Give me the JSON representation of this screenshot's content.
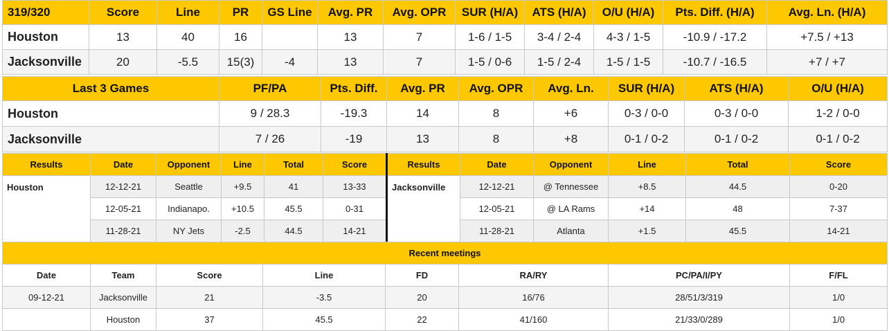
{
  "matchup": {
    "headers": [
      "319/320",
      "Score",
      "Line",
      "PR",
      "GS Line",
      "Avg. PR",
      "Avg. OPR",
      "SUR (H/A)",
      "ATS (H/A)",
      "O/U (H/A)",
      "Pts. Diff. (H/A)",
      "Avg. Ln. (H/A)"
    ],
    "rows": [
      {
        "team": "Houston",
        "cells": [
          "13",
          "40",
          "16",
          "",
          "13",
          "7",
          "1-6 / 1-5",
          "3-4 / 2-4",
          "4-3 / 1-5",
          "-10.9 / -17.2",
          "+7.5 / +13"
        ]
      },
      {
        "team": "Jacksonville",
        "cells": [
          "20",
          "-5.5",
          "15(3)",
          "-4",
          "13",
          "7",
          "1-5 / 0-6",
          "1-5 / 2-4",
          "1-5 / 1-5",
          "-10.7 / -16.5",
          "+7 / +7"
        ]
      }
    ]
  },
  "last3": {
    "headers": [
      "Last 3 Games",
      "PF/PA",
      "Pts. Diff.",
      "Avg. PR",
      "Avg. OPR",
      "Avg. Ln.",
      "SUR (H/A)",
      "ATS (H/A)",
      "O/U (H/A)"
    ],
    "rows": [
      {
        "team": "Houston",
        "cells": [
          "9 / 28.3",
          "-19.3",
          "14",
          "8",
          "+6",
          "0-3 / 0-0",
          "0-3 / 0-0",
          "1-2 / 0-0"
        ]
      },
      {
        "team": "Jacksonville",
        "cells": [
          "7 / 26",
          "-19",
          "13",
          "8",
          "+8",
          "0-1 / 0-2",
          "0-1 / 0-2",
          "0-1 / 0-2"
        ]
      }
    ]
  },
  "results": {
    "headers": [
      "Results",
      "Date",
      "Opponent",
      "Line",
      "Total",
      "Score",
      "Results",
      "Date",
      "Opponent",
      "Line",
      "Total",
      "Score"
    ],
    "left_team": "Houston",
    "right_team": "Jacksonville",
    "rows": [
      {
        "left": [
          "12-12-21",
          "Seattle",
          "+9.5",
          "41",
          "13-33"
        ],
        "right": [
          "12-12-21",
          "@ Tennessee",
          "+8.5",
          "44.5",
          "0-20"
        ]
      },
      {
        "left": [
          "12-05-21",
          "Indianapo.",
          "+10.5",
          "45.5",
          "0-31"
        ],
        "right": [
          "12-05-21",
          "@ LA Rams",
          "+14",
          "48",
          "7-37"
        ]
      },
      {
        "left": [
          "11-28-21",
          "NY Jets",
          "-2.5",
          "44.5",
          "14-21"
        ],
        "right": [
          "11-28-21",
          "Atlanta",
          "+1.5",
          "45.5",
          "14-21"
        ]
      }
    ]
  },
  "meetings": {
    "title": "Recent meetings",
    "headers": [
      "Date",
      "Team",
      "Score",
      "Line",
      "FD",
      "RA/RY",
      "PC/PA/I/PY",
      "F/FL"
    ],
    "rows": [
      [
        "09-12-21",
        "Jacksonville",
        "21",
        "-3.5",
        "20",
        "16/76",
        "28/51/3/319",
        "1/0"
      ],
      [
        "",
        "Houston",
        "37",
        "45.5",
        "22",
        "41/160",
        "21/33/0/289",
        "1/0"
      ]
    ]
  },
  "colors": {
    "header_bg": "#fdc800",
    "row_alt": "#f4f4f4",
    "grid": "#c8c8c8"
  }
}
